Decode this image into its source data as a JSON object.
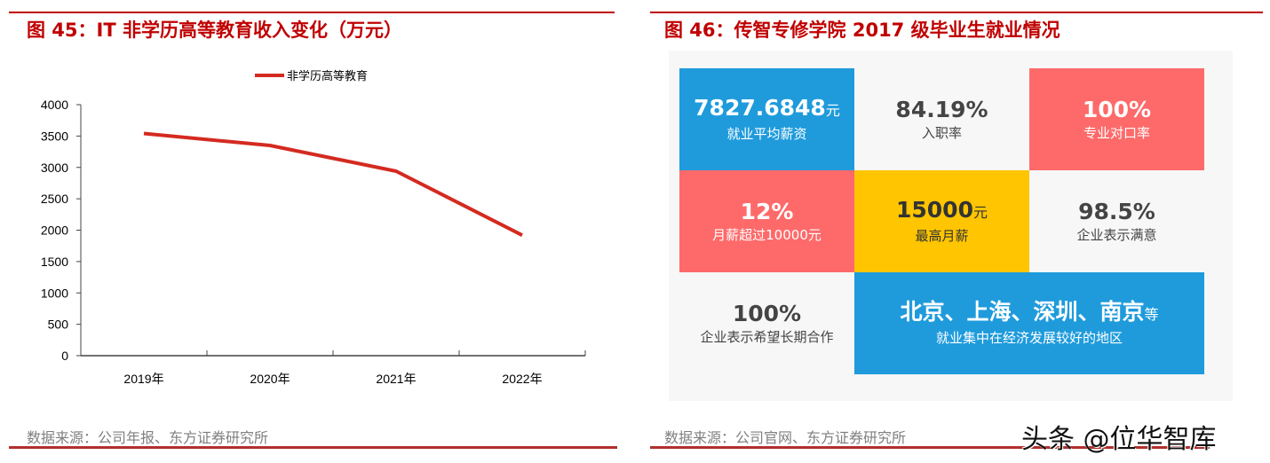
{
  "left": {
    "title": "图 45：IT 非学历高等教育收入变化（万元）",
    "source": "数据来源：公司年报、东方证券研究所"
  },
  "right": {
    "title": "图 46：传智专修学院 2017 级毕业生就业情况",
    "source": "数据来源：公司官网、东方证券研究所",
    "cells": [
      {
        "value": "7827.6848",
        "unit": "元",
        "label": "就业平均薪资",
        "bg": "#1f9bdc",
        "color": "#ffffff"
      },
      {
        "value": "84.19%",
        "unit": "",
        "label": "入职率",
        "bg": "#f7f7f7",
        "color": "#444444"
      },
      {
        "value": "100%",
        "unit": "",
        "label": "专业对口率",
        "bg": "#fe6a6a",
        "color": "#ffffff"
      },
      {
        "value": "12%",
        "unit": "",
        "label": "月薪超过10000元",
        "bg": "#fe6a6a",
        "color": "#ffffff"
      },
      {
        "value": "15000",
        "unit": "元",
        "label": "最高月薪",
        "bg": "#fec500",
        "color": "#333333"
      },
      {
        "value": "98.5%",
        "unit": "",
        "label": "企业表示满意",
        "bg": "#f7f7f7",
        "color": "#444444"
      },
      {
        "value": "100%",
        "unit": "",
        "label": "企业表示希望长期合作",
        "bg": "#f7f7f7",
        "color": "#444444"
      },
      {
        "value": "北京、上海、深圳、南京",
        "unit": "等",
        "label": "就业集中在经济发展较好的地区",
        "bg": "#1f9bdc",
        "color": "#ffffff"
      }
    ]
  },
  "watermark": "头条 @位华智库",
  "chart_data": {
    "type": "line",
    "categories": [
      "2019年",
      "2020年",
      "2021年",
      "2022年"
    ],
    "series": [
      {
        "name": "非学历高等教育",
        "values": [
          3540,
          3350,
          2940,
          1920
        ],
        "color": "#d42a20"
      }
    ],
    "ylim": [
      0,
      4000
    ],
    "yticks": [
      0,
      500,
      1000,
      1500,
      2000,
      2500,
      3000,
      3500,
      4000
    ],
    "grid": false,
    "legend": "top"
  }
}
